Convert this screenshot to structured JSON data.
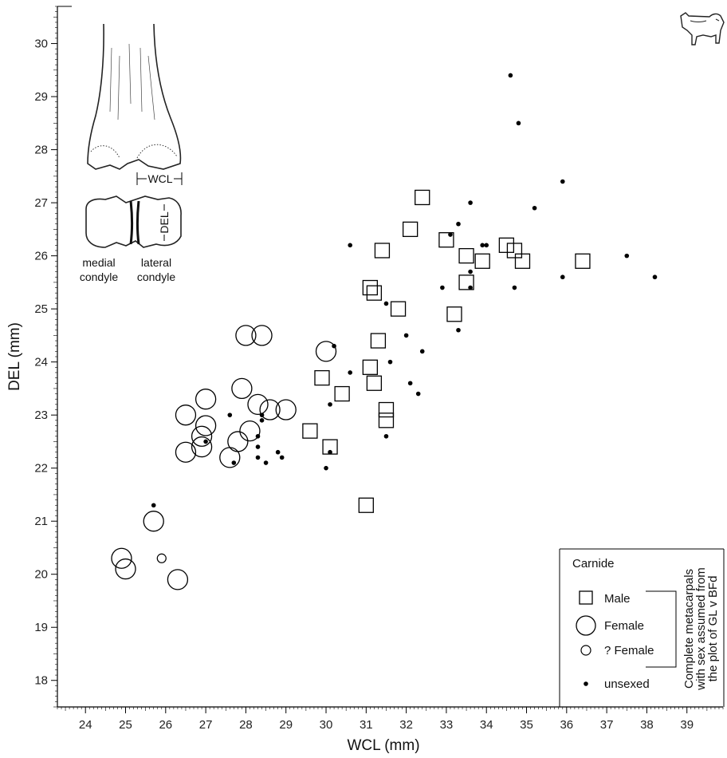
{
  "chart_data": {
    "type": "scatter",
    "xlabel": "WCL (mm)",
    "ylabel": "DEL (mm)",
    "xlim": [
      23.3,
      39.9
    ],
    "ylim": [
      17.5,
      30.7
    ],
    "x_ticks": [
      "24",
      "25",
      "26",
      "27",
      "28",
      "29",
      "30",
      "31",
      "32",
      "33",
      "34",
      "35",
      "36",
      "37",
      "38",
      "39"
    ],
    "y_ticks": [
      "18",
      "19",
      "20",
      "21",
      "22",
      "23",
      "24",
      "25",
      "26",
      "27",
      "28",
      "29",
      "30"
    ],
    "grid": false,
    "legend": {
      "title": "Carnide",
      "position": "bottom-right",
      "bracket_note": [
        "Complete metacarpals",
        "with sex assumed from",
        "the plot of GL v BFd"
      ]
    },
    "series": [
      {
        "name": "Male",
        "marker": "square",
        "points": [
          [
            32.4,
            27.1
          ],
          [
            32.1,
            26.5
          ],
          [
            33.0,
            26.3
          ],
          [
            34.5,
            26.2
          ],
          [
            31.4,
            26.1
          ],
          [
            34.7,
            26.1
          ],
          [
            33.5,
            26.0
          ],
          [
            33.9,
            25.9
          ],
          [
            34.9,
            25.9
          ],
          [
            36.4,
            25.9
          ],
          [
            33.5,
            25.5
          ],
          [
            31.1,
            25.4
          ],
          [
            31.2,
            25.3
          ],
          [
            31.8,
            25.0
          ],
          [
            33.2,
            24.9
          ],
          [
            31.3,
            24.4
          ],
          [
            31.1,
            23.9
          ],
          [
            29.9,
            23.7
          ],
          [
            31.2,
            23.6
          ],
          [
            30.4,
            23.4
          ],
          [
            31.5,
            23.1
          ],
          [
            31.5,
            22.9
          ],
          [
            29.6,
            22.7
          ],
          [
            30.1,
            22.4
          ],
          [
            31.0,
            21.3
          ]
        ]
      },
      {
        "name": "Female",
        "marker": "circle-large",
        "points": [
          [
            28.0,
            24.5
          ],
          [
            28.4,
            24.5
          ],
          [
            30.0,
            24.2
          ],
          [
            27.9,
            23.5
          ],
          [
            27.0,
            23.3
          ],
          [
            28.3,
            23.2
          ],
          [
            28.6,
            23.1
          ],
          [
            29.0,
            23.1
          ],
          [
            26.5,
            23.0
          ],
          [
            27.0,
            22.8
          ],
          [
            28.1,
            22.7
          ],
          [
            26.9,
            22.6
          ],
          [
            26.9,
            22.4
          ],
          [
            27.8,
            22.5
          ],
          [
            26.5,
            22.3
          ],
          [
            27.6,
            22.2
          ],
          [
            25.7,
            21.0
          ],
          [
            24.9,
            20.3
          ],
          [
            25.0,
            20.1
          ],
          [
            26.3,
            19.9
          ]
        ]
      },
      {
        "name": "? Female",
        "marker": "circle-small",
        "points": [
          [
            25.9,
            20.3
          ]
        ]
      },
      {
        "name": "unsexed",
        "marker": "dot",
        "points": [
          [
            34.6,
            29.4
          ],
          [
            34.8,
            28.5
          ],
          [
            35.9,
            27.4
          ],
          [
            33.6,
            27.0
          ],
          [
            35.2,
            26.9
          ],
          [
            33.3,
            26.6
          ],
          [
            33.1,
            26.4
          ],
          [
            34.0,
            26.2
          ],
          [
            33.9,
            26.2
          ],
          [
            30.6,
            26.2
          ],
          [
            37.5,
            26.0
          ],
          [
            35.9,
            25.6
          ],
          [
            38.2,
            25.6
          ],
          [
            33.6,
            25.7
          ],
          [
            32.9,
            25.4
          ],
          [
            33.6,
            25.4
          ],
          [
            34.7,
            25.4
          ],
          [
            31.5,
            25.1
          ],
          [
            33.3,
            24.6
          ],
          [
            32.0,
            24.5
          ],
          [
            30.2,
            24.3
          ],
          [
            32.4,
            24.2
          ],
          [
            31.6,
            24.0
          ],
          [
            30.6,
            23.8
          ],
          [
            32.1,
            23.6
          ],
          [
            32.3,
            23.4
          ],
          [
            30.1,
            23.2
          ],
          [
            27.6,
            23.0
          ],
          [
            28.4,
            23.0
          ],
          [
            28.4,
            22.9
          ],
          [
            28.3,
            22.6
          ],
          [
            31.5,
            22.6
          ],
          [
            27.0,
            22.5
          ],
          [
            28.3,
            22.4
          ],
          [
            28.8,
            22.3
          ],
          [
            30.1,
            22.3
          ],
          [
            28.3,
            22.2
          ],
          [
            28.9,
            22.2
          ],
          [
            27.7,
            22.1
          ],
          [
            28.5,
            22.1
          ],
          [
            30.0,
            22.0
          ],
          [
            25.7,
            21.3
          ]
        ]
      }
    ]
  },
  "illustration": {
    "wcl_label": "WCL",
    "del_label": "DEL",
    "medial_label_1": "medial",
    "medial_label_2": "condyle",
    "lateral_label_1": "lateral",
    "lateral_label_2": "condyle"
  }
}
